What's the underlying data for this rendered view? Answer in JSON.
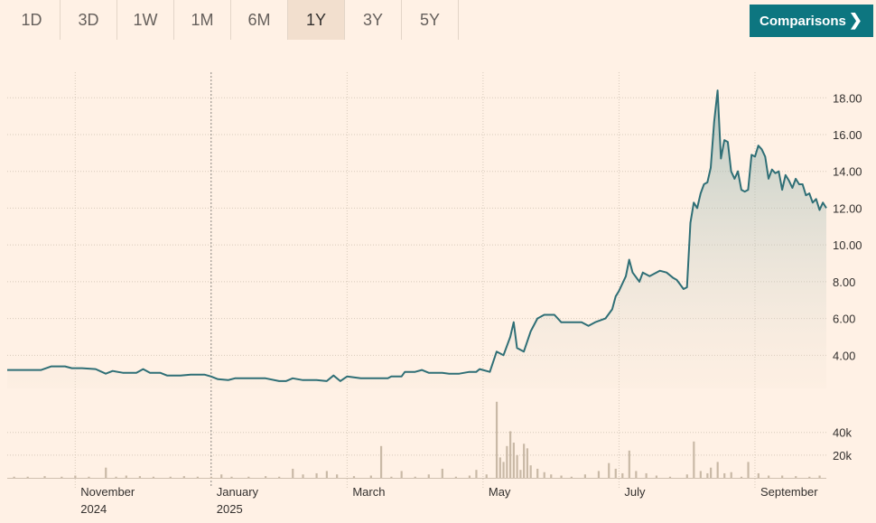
{
  "range_tabs": [
    "1D",
    "3D",
    "1W",
    "1M",
    "6M",
    "1Y",
    "3Y",
    "5Y"
  ],
  "active_tab": "1Y",
  "comparisons_label": "Comparisons",
  "colors": {
    "line": "#2f6f76",
    "volume": "#c9b9a6",
    "active_tab_bg": "#f2dfce",
    "button": "#0d7680"
  },
  "chart_data": {
    "type": "line",
    "series_unit": "price",
    "y_ticks": [
      "4.00",
      "6.00",
      "8.00",
      "10.00",
      "12.00",
      "14.00",
      "16.00",
      "18.00"
    ],
    "volume_ticks": [
      "20k",
      "40k"
    ],
    "x_ticks": [
      {
        "label": "November",
        "sub": "2024"
      },
      {
        "label": "January",
        "sub": "2025"
      },
      {
        "label": "March",
        "sub": ""
      },
      {
        "label": "May",
        "sub": ""
      },
      {
        "label": "July",
        "sub": ""
      },
      {
        "label": "September",
        "sub": ""
      }
    ],
    "x_tick_months": [
      1.0,
      3.0,
      5.0,
      7.0,
      9.0,
      11.0
    ],
    "x_range_months": [
      0.0,
      11.5
    ],
    "y_range": [
      2.2,
      18.7
    ],
    "price": [
      [
        0.0,
        3.2
      ],
      [
        0.25,
        3.2
      ],
      [
        0.5,
        3.2
      ],
      [
        0.65,
        3.4
      ],
      [
        0.85,
        3.4
      ],
      [
        0.95,
        3.3
      ],
      [
        1.1,
        3.3
      ],
      [
        1.3,
        3.25
      ],
      [
        1.45,
        3.0
      ],
      [
        1.55,
        3.15
      ],
      [
        1.7,
        3.05
      ],
      [
        1.9,
        3.05
      ],
      [
        2.0,
        3.25
      ],
      [
        2.1,
        3.05
      ],
      [
        2.25,
        3.05
      ],
      [
        2.35,
        2.9
      ],
      [
        2.55,
        2.9
      ],
      [
        2.7,
        2.95
      ],
      [
        2.9,
        2.95
      ],
      [
        3.0,
        2.85
      ],
      [
        3.1,
        2.7
      ],
      [
        3.25,
        2.65
      ],
      [
        3.35,
        2.75
      ],
      [
        3.6,
        2.75
      ],
      [
        3.8,
        2.75
      ],
      [
        4.0,
        2.6
      ],
      [
        4.1,
        2.6
      ],
      [
        4.2,
        2.75
      ],
      [
        4.35,
        2.65
      ],
      [
        4.55,
        2.65
      ],
      [
        4.7,
        2.6
      ],
      [
        4.8,
        2.9
      ],
      [
        4.9,
        2.6
      ],
      [
        5.0,
        2.85
      ],
      [
        5.2,
        2.75
      ],
      [
        5.4,
        2.75
      ],
      [
        5.6,
        2.75
      ],
      [
        5.65,
        2.85
      ],
      [
        5.8,
        2.85
      ],
      [
        5.85,
        3.1
      ],
      [
        6.0,
        3.1
      ],
      [
        6.1,
        3.2
      ],
      [
        6.2,
        3.05
      ],
      [
        6.4,
        3.05
      ],
      [
        6.5,
        3.0
      ],
      [
        6.65,
        3.0
      ],
      [
        6.8,
        3.1
      ],
      [
        6.9,
        3.1
      ],
      [
        6.95,
        3.25
      ],
      [
        7.1,
        3.1
      ],
      [
        7.2,
        4.2
      ],
      [
        7.3,
        4.0
      ],
      [
        7.4,
        5.0
      ],
      [
        7.45,
        5.8
      ],
      [
        7.5,
        4.4
      ],
      [
        7.6,
        4.2
      ],
      [
        7.7,
        5.3
      ],
      [
        7.8,
        6.0
      ],
      [
        7.9,
        6.2
      ],
      [
        8.05,
        6.2
      ],
      [
        8.15,
        5.8
      ],
      [
        8.3,
        5.8
      ],
      [
        8.45,
        5.8
      ],
      [
        8.55,
        5.6
      ],
      [
        8.65,
        5.8
      ],
      [
        8.8,
        6.0
      ],
      [
        8.9,
        6.5
      ],
      [
        8.95,
        7.2
      ],
      [
        9.0,
        7.5
      ],
      [
        9.1,
        8.3
      ],
      [
        9.15,
        9.2
      ],
      [
        9.2,
        8.5
      ],
      [
        9.3,
        8.0
      ],
      [
        9.35,
        8.5
      ],
      [
        9.45,
        8.3
      ],
      [
        9.6,
        8.6
      ],
      [
        9.7,
        8.5
      ],
      [
        9.8,
        8.2
      ],
      [
        9.85,
        8.1
      ],
      [
        9.95,
        7.6
      ],
      [
        10.0,
        7.7
      ],
      [
        10.05,
        11.2
      ],
      [
        10.1,
        12.3
      ],
      [
        10.15,
        12.0
      ],
      [
        10.2,
        12.8
      ],
      [
        10.25,
        13.3
      ],
      [
        10.3,
        13.4
      ],
      [
        10.35,
        14.2
      ],
      [
        10.4,
        16.7
      ],
      [
        10.45,
        18.4
      ],
      [
        10.5,
        14.7
      ],
      [
        10.55,
        15.7
      ],
      [
        10.6,
        15.6
      ],
      [
        10.65,
        14.0
      ],
      [
        10.7,
        13.6
      ],
      [
        10.75,
        14.0
      ],
      [
        10.8,
        13.0
      ],
      [
        10.85,
        12.9
      ],
      [
        10.9,
        13.0
      ],
      [
        10.95,
        14.9
      ],
      [
        11.0,
        14.8
      ],
      [
        11.05,
        15.4
      ],
      [
        11.1,
        15.2
      ],
      [
        11.15,
        14.8
      ],
      [
        11.2,
        13.6
      ],
      [
        11.25,
        14.1
      ],
      [
        11.3,
        13.9
      ],
      [
        11.35,
        14.0
      ],
      [
        11.4,
        13.0
      ],
      [
        11.45,
        13.8
      ],
      [
        11.5,
        13.5
      ],
      [
        11.55,
        13.1
      ],
      [
        11.6,
        13.6
      ],
      [
        11.65,
        13.3
      ],
      [
        11.7,
        13.3
      ],
      [
        11.75,
        12.7
      ],
      [
        11.8,
        12.8
      ],
      [
        11.85,
        12.3
      ],
      [
        11.9,
        12.5
      ],
      [
        11.95,
        11.9
      ],
      [
        12.0,
        12.3
      ],
      [
        12.05,
        12.0
      ]
    ],
    "volume": [
      [
        0.1,
        1
      ],
      [
        0.3,
        1
      ],
      [
        0.55,
        1.5
      ],
      [
        0.8,
        1
      ],
      [
        1.0,
        2
      ],
      [
        1.2,
        1
      ],
      [
        1.45,
        9
      ],
      [
        1.6,
        1
      ],
      [
        1.75,
        2
      ],
      [
        1.95,
        1.5
      ],
      [
        2.15,
        1
      ],
      [
        2.4,
        1
      ],
      [
        2.6,
        1.5
      ],
      [
        2.8,
        1
      ],
      [
        3.0,
        1
      ],
      [
        3.15,
        3
      ],
      [
        3.3,
        1
      ],
      [
        3.55,
        1
      ],
      [
        3.8,
        1.5
      ],
      [
        4.0,
        1
      ],
      [
        4.2,
        8
      ],
      [
        4.35,
        3
      ],
      [
        4.55,
        4
      ],
      [
        4.7,
        6
      ],
      [
        4.85,
        3
      ],
      [
        5.1,
        1.5
      ],
      [
        5.35,
        2
      ],
      [
        5.5,
        28
      ],
      [
        5.65,
        1
      ],
      [
        5.8,
        6
      ],
      [
        6.0,
        1
      ],
      [
        6.2,
        3
      ],
      [
        6.4,
        8
      ],
      [
        6.6,
        1
      ],
      [
        6.8,
        2
      ],
      [
        6.9,
        7
      ],
      [
        7.05,
        3
      ],
      [
        7.2,
        67
      ],
      [
        7.25,
        18
      ],
      [
        7.3,
        14
      ],
      [
        7.35,
        28
      ],
      [
        7.4,
        41
      ],
      [
        7.45,
        31
      ],
      [
        7.5,
        20
      ],
      [
        7.55,
        7
      ],
      [
        7.6,
        30
      ],
      [
        7.65,
        26
      ],
      [
        7.7,
        11
      ],
      [
        7.8,
        8
      ],
      [
        7.9,
        5
      ],
      [
        8.0,
        3
      ],
      [
        8.15,
        2
      ],
      [
        8.3,
        1
      ],
      [
        8.5,
        3
      ],
      [
        8.7,
        6
      ],
      [
        8.85,
        13
      ],
      [
        8.95,
        8
      ],
      [
        9.05,
        4
      ],
      [
        9.15,
        24
      ],
      [
        9.25,
        6
      ],
      [
        9.4,
        4
      ],
      [
        9.55,
        2
      ],
      [
        9.75,
        1
      ],
      [
        10.0,
        3
      ],
      [
        10.1,
        32
      ],
      [
        10.2,
        6
      ],
      [
        10.3,
        4
      ],
      [
        10.35,
        9
      ],
      [
        10.45,
        14
      ],
      [
        10.55,
        4
      ],
      [
        10.65,
        5
      ],
      [
        10.8,
        1
      ],
      [
        10.9,
        14
      ],
      [
        11.05,
        4
      ],
      [
        11.2,
        2
      ],
      [
        11.4,
        2
      ],
      [
        11.6,
        1.5
      ],
      [
        11.8,
        1
      ],
      [
        11.95,
        2
      ]
    ],
    "volume_max": 70
  }
}
